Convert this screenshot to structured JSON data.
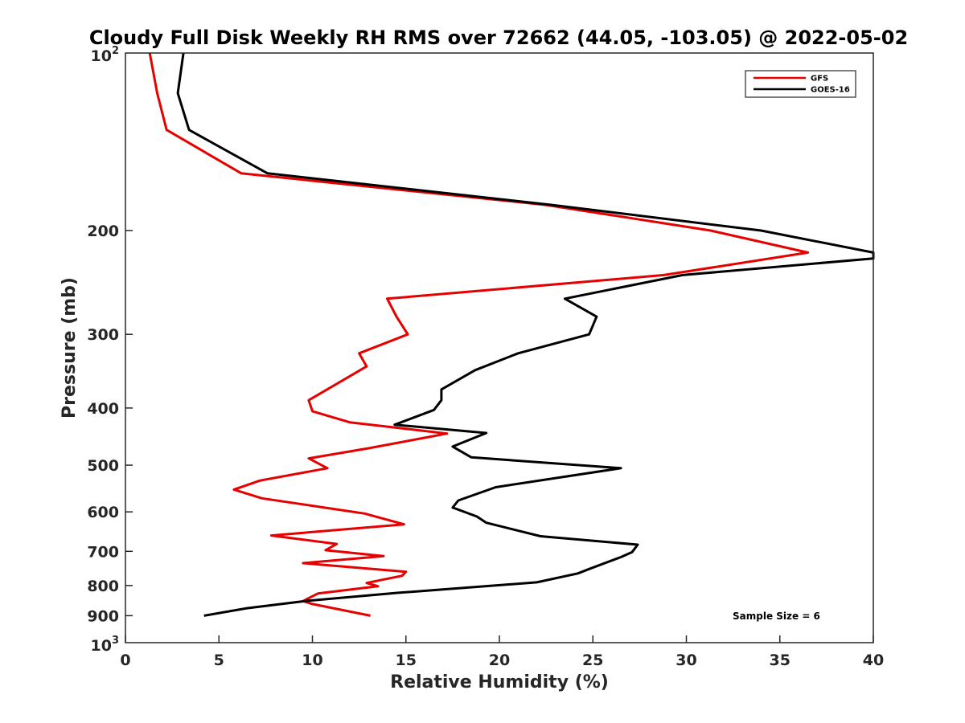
{
  "chart_data": {
    "type": "line",
    "title": "Cloudy Full Disk Weekly RH RMS over 72662 (44.05, -103.05) @ 2022-05-02",
    "xlabel": "Relative Humidity (%)",
    "ylabel": "Pressure (mb)",
    "xlim": [
      0,
      40
    ],
    "ylim": [
      100,
      1000
    ],
    "yscale": "log",
    "y_reversed": true,
    "grid": false,
    "legend_position": "top-right",
    "x_ticks": [
      0,
      5,
      10,
      15,
      20,
      25,
      30,
      35,
      40
    ],
    "x_tick_labels": [
      "0",
      "5",
      "10",
      "15",
      "20",
      "25",
      "30",
      "35",
      "40"
    ],
    "y_ticks": [
      200,
      300,
      400,
      500,
      600,
      700,
      800,
      900
    ],
    "y_tick_labels": [
      "200",
      "300",
      "400",
      "500",
      "600",
      "700",
      "800",
      "900"
    ],
    "y_end_labels": {
      "top_base": "10",
      "top_exp": "2",
      "bottom_base": "10",
      "bottom_exp": "3"
    },
    "annotation": "Sample Size = 6",
    "series": [
      {
        "name": "GFS",
        "color": "#e60000",
        "points": [
          [
            1.3,
            100
          ],
          [
            1.7,
            117
          ],
          [
            2.2,
            135
          ],
          [
            6.2,
            160
          ],
          [
            22.5,
            181
          ],
          [
            31.3,
            200
          ],
          [
            36.5,
            218
          ],
          [
            28.8,
            238
          ],
          [
            14.0,
            261
          ],
          [
            14.5,
            280
          ],
          [
            15.1,
            300
          ],
          [
            12.5,
            323
          ],
          [
            12.9,
            340
          ],
          [
            9.8,
            388
          ],
          [
            10.0,
            405
          ],
          [
            12.0,
            423
          ],
          [
            17.2,
            442
          ],
          [
            13.0,
            468
          ],
          [
            9.8,
            487
          ],
          [
            10.8,
            506
          ],
          [
            7.2,
            531
          ],
          [
            5.8,
            550
          ],
          [
            7.3,
            569
          ],
          [
            12.8,
            604
          ],
          [
            14.9,
            630
          ],
          [
            7.8,
            658
          ],
          [
            11.3,
            680
          ],
          [
            10.7,
            697
          ],
          [
            13.8,
            713
          ],
          [
            9.5,
            733
          ],
          [
            15.0,
            758
          ],
          [
            14.8,
            770
          ],
          [
            12.9,
            792
          ],
          [
            13.5,
            802
          ],
          [
            10.3,
            825
          ],
          [
            9.5,
            850
          ],
          [
            10.0,
            860
          ],
          [
            13.1,
            900
          ]
        ]
      },
      {
        "name": "GOES-16",
        "color": "#000000",
        "points": [
          [
            3.1,
            100
          ],
          [
            2.8,
            117
          ],
          [
            3.4,
            135
          ],
          [
            7.6,
            160
          ],
          [
            22.8,
            181
          ],
          [
            34.0,
            200
          ],
          [
            40.0,
            218
          ],
          [
            40.0,
            223
          ],
          [
            29.8,
            238
          ],
          [
            23.5,
            261
          ],
          [
            25.2,
            280
          ],
          [
            24.8,
            300
          ],
          [
            21.0,
            323
          ],
          [
            18.7,
            345
          ],
          [
            16.9,
            372
          ],
          [
            16.9,
            388
          ],
          [
            16.5,
            403
          ],
          [
            14.4,
            427
          ],
          [
            19.3,
            441
          ],
          [
            17.5,
            465
          ],
          [
            18.5,
            485
          ],
          [
            26.5,
            506
          ],
          [
            19.8,
            545
          ],
          [
            17.8,
            574
          ],
          [
            17.5,
            590
          ],
          [
            18.8,
            611
          ],
          [
            19.3,
            626
          ],
          [
            22.2,
            660
          ],
          [
            27.4,
            682
          ],
          [
            27.1,
            702
          ],
          [
            26.5,
            716
          ],
          [
            24.8,
            750
          ],
          [
            24.2,
            763
          ],
          [
            22.0,
            790
          ],
          [
            14.6,
            823
          ],
          [
            9.6,
            850
          ],
          [
            6.5,
            874
          ],
          [
            4.2,
            900
          ]
        ]
      }
    ]
  }
}
